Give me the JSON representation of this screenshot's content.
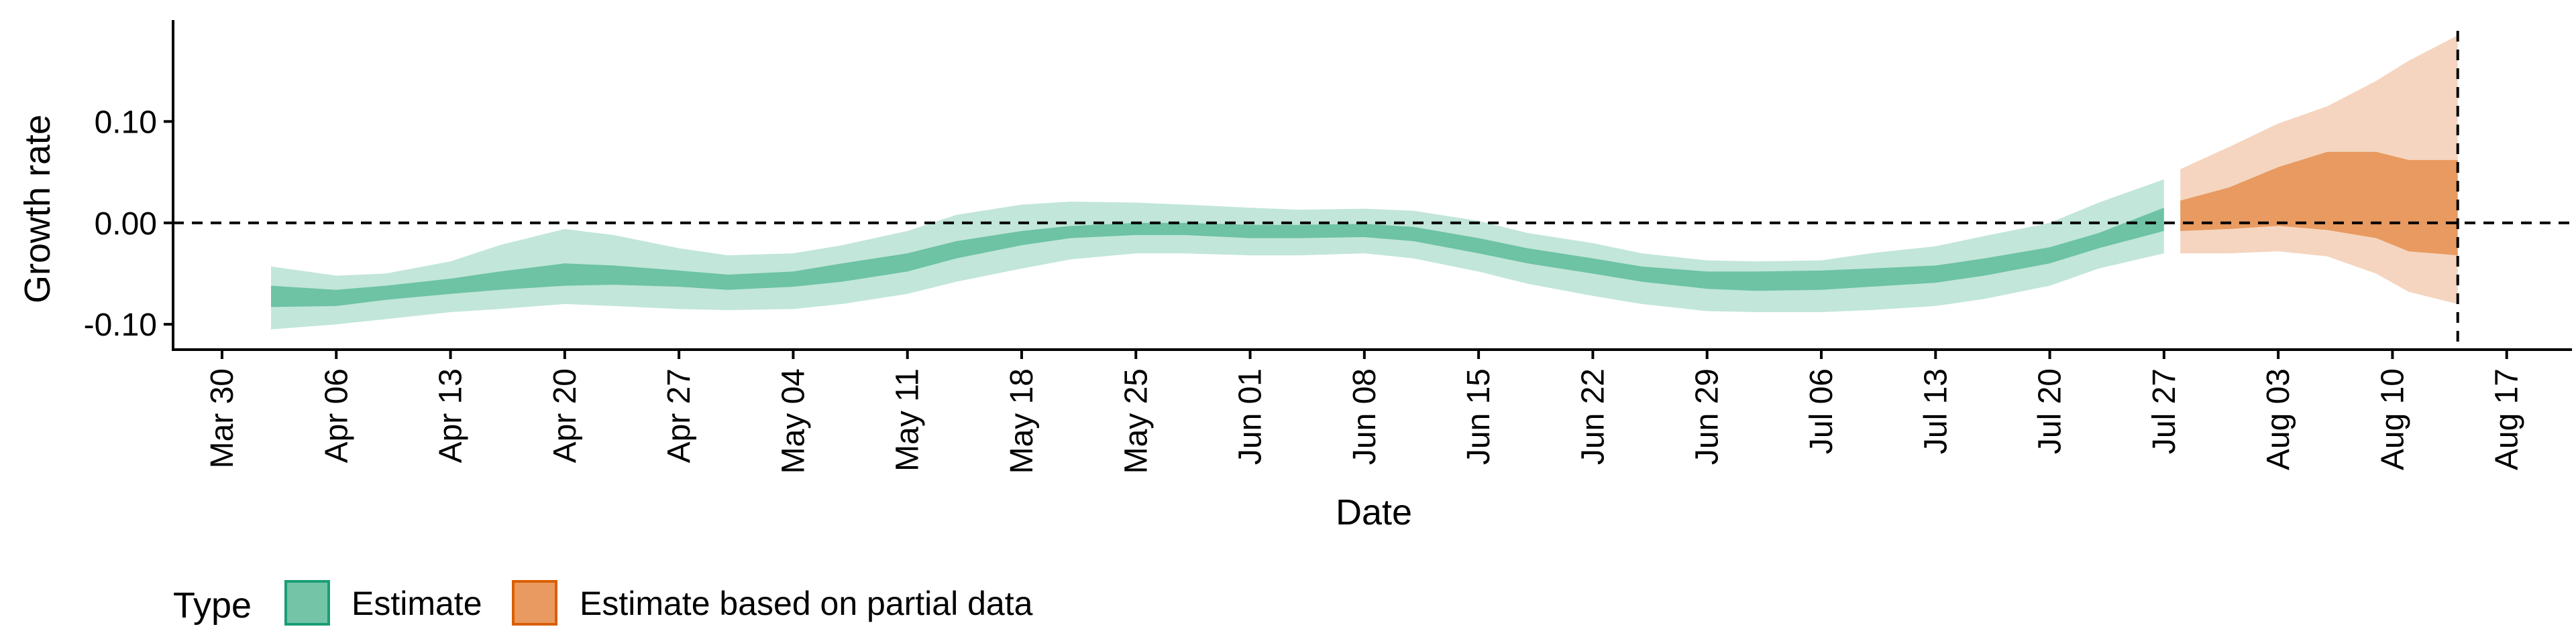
{
  "chart_data": {
    "type": "area",
    "title": "",
    "xlabel": "Date",
    "ylabel": "Growth rate",
    "x_axis": {
      "type": "date",
      "range": [
        "2020-03-27",
        "2020-08-21"
      ],
      "tick_dates": [
        "2020-03-30",
        "2020-04-06",
        "2020-04-13",
        "2020-04-20",
        "2020-04-27",
        "2020-05-04",
        "2020-05-11",
        "2020-05-18",
        "2020-05-25",
        "2020-06-01",
        "2020-06-08",
        "2020-06-15",
        "2020-06-22",
        "2020-06-29",
        "2020-07-06",
        "2020-07-13",
        "2020-07-20",
        "2020-07-27",
        "2020-08-03",
        "2020-08-10",
        "2020-08-17"
      ],
      "tick_labels": [
        "Mar 30",
        "Apr 06",
        "Apr 13",
        "Apr 20",
        "Apr 27",
        "May 04",
        "May 11",
        "May 18",
        "May 25",
        "Jun 01",
        "Jun 08",
        "Jun 15",
        "Jun 22",
        "Jun 29",
        "Jul 06",
        "Jul 13",
        "Jul 20",
        "Jul 27",
        "Aug 03",
        "Aug 10",
        "Aug 17"
      ]
    },
    "y_axis": {
      "range": [
        -0.125,
        0.2
      ],
      "ticks": [
        -0.1,
        0.0,
        0.1
      ],
      "tick_labels": [
        "-0.10",
        "0.00",
        "0.10"
      ]
    },
    "reference_lines": {
      "horizontal_y": 0.0,
      "vertical_date": "2020-08-14"
    },
    "grid": false,
    "legend": {
      "title": "Type",
      "position": "bottom-left",
      "entries": [
        {
          "label": "Estimate",
          "fill": "#74c4a8",
          "border": "#1b9e77"
        },
        {
          "label": "Estimate based on partial data",
          "fill": "#e89a60",
          "border": "#d95f02"
        }
      ]
    },
    "colors": {
      "estimate_inner": "#6dc3a4",
      "estimate_outer": "#c2e6da",
      "partial_inner": "#e89a60",
      "partial_outer": "#f5d5bf"
    },
    "series": [
      {
        "name": "Estimate",
        "points": [
          {
            "date": "2020-04-02",
            "lo90": -0.105,
            "lo50": -0.083,
            "hi50": -0.062,
            "hi90": -0.043
          },
          {
            "date": "2020-04-06",
            "lo90": -0.1,
            "lo50": -0.082,
            "hi50": -0.066,
            "hi90": -0.052
          },
          {
            "date": "2020-04-09",
            "lo90": -0.095,
            "lo50": -0.076,
            "hi50": -0.062,
            "hi90": -0.05
          },
          {
            "date": "2020-04-13",
            "lo90": -0.088,
            "lo50": -0.07,
            "hi50": -0.055,
            "hi90": -0.038
          },
          {
            "date": "2020-04-16",
            "lo90": -0.085,
            "lo50": -0.066,
            "hi50": -0.048,
            "hi90": -0.022
          },
          {
            "date": "2020-04-20",
            "lo90": -0.08,
            "lo50": -0.062,
            "hi50": -0.04,
            "hi90": -0.006
          },
          {
            "date": "2020-04-23",
            "lo90": -0.082,
            "lo50": -0.061,
            "hi50": -0.042,
            "hi90": -0.012
          },
          {
            "date": "2020-04-27",
            "lo90": -0.085,
            "lo50": -0.063,
            "hi50": -0.047,
            "hi90": -0.025
          },
          {
            "date": "2020-04-30",
            "lo90": -0.086,
            "lo50": -0.066,
            "hi50": -0.051,
            "hi90": -0.032
          },
          {
            "date": "2020-05-04",
            "lo90": -0.085,
            "lo50": -0.063,
            "hi50": -0.048,
            "hi90": -0.03
          },
          {
            "date": "2020-05-07",
            "lo90": -0.08,
            "lo50": -0.058,
            "hi50": -0.04,
            "hi90": -0.022
          },
          {
            "date": "2020-05-11",
            "lo90": -0.07,
            "lo50": -0.048,
            "hi50": -0.03,
            "hi90": -0.008
          },
          {
            "date": "2020-05-14",
            "lo90": -0.058,
            "lo50": -0.035,
            "hi50": -0.018,
            "hi90": 0.008
          },
          {
            "date": "2020-05-18",
            "lo90": -0.045,
            "lo50": -0.022,
            "hi50": -0.008,
            "hi90": 0.018
          },
          {
            "date": "2020-05-21",
            "lo90": -0.036,
            "lo50": -0.015,
            "hi50": -0.003,
            "hi90": 0.021
          },
          {
            "date": "2020-05-25",
            "lo90": -0.03,
            "lo50": -0.012,
            "hi50": 0.0,
            "hi90": 0.02
          },
          {
            "date": "2020-05-28",
            "lo90": -0.03,
            "lo50": -0.012,
            "hi50": 0.0,
            "hi90": 0.018
          },
          {
            "date": "2020-06-01",
            "lo90": -0.032,
            "lo50": -0.015,
            "hi50": -0.002,
            "hi90": 0.015
          },
          {
            "date": "2020-06-04",
            "lo90": -0.032,
            "lo50": -0.015,
            "hi50": -0.002,
            "hi90": 0.013
          },
          {
            "date": "2020-06-08",
            "lo90": -0.03,
            "lo50": -0.014,
            "hi50": -0.001,
            "hi90": 0.014
          },
          {
            "date": "2020-06-11",
            "lo90": -0.035,
            "lo50": -0.018,
            "hi50": -0.004,
            "hi90": 0.012
          },
          {
            "date": "2020-06-15",
            "lo90": -0.048,
            "lo50": -0.03,
            "hi50": -0.015,
            "hi90": 0.002
          },
          {
            "date": "2020-06-18",
            "lo90": -0.06,
            "lo50": -0.04,
            "hi50": -0.025,
            "hi90": -0.01
          },
          {
            "date": "2020-06-22",
            "lo90": -0.072,
            "lo50": -0.05,
            "hi50": -0.035,
            "hi90": -0.02
          },
          {
            "date": "2020-06-25",
            "lo90": -0.08,
            "lo50": -0.058,
            "hi50": -0.043,
            "hi90": -0.03
          },
          {
            "date": "2020-06-29",
            "lo90": -0.087,
            "lo50": -0.065,
            "hi50": -0.048,
            "hi90": -0.037
          },
          {
            "date": "2020-07-02",
            "lo90": -0.088,
            "lo50": -0.067,
            "hi50": -0.048,
            "hi90": -0.038
          },
          {
            "date": "2020-07-06",
            "lo90": -0.088,
            "lo50": -0.066,
            "hi50": -0.047,
            "hi90": -0.037
          },
          {
            "date": "2020-07-09",
            "lo90": -0.086,
            "lo50": -0.063,
            "hi50": -0.045,
            "hi90": -0.03
          },
          {
            "date": "2020-07-13",
            "lo90": -0.082,
            "lo50": -0.059,
            "hi50": -0.042,
            "hi90": -0.023
          },
          {
            "date": "2020-07-16",
            "lo90": -0.075,
            "lo50": -0.052,
            "hi50": -0.035,
            "hi90": -0.013
          },
          {
            "date": "2020-07-20",
            "lo90": -0.062,
            "lo50": -0.04,
            "hi50": -0.024,
            "hi90": 0.0
          },
          {
            "date": "2020-07-23",
            "lo90": -0.045,
            "lo50": -0.025,
            "hi50": -0.01,
            "hi90": 0.02
          },
          {
            "date": "2020-07-27",
            "lo90": -0.03,
            "lo50": -0.008,
            "hi50": 0.015,
            "hi90": 0.043
          }
        ]
      },
      {
        "name": "Estimate based on partial data",
        "points": [
          {
            "date": "2020-07-28",
            "lo90": -0.03,
            "lo50": -0.008,
            "hi50": 0.022,
            "hi90": 0.053
          },
          {
            "date": "2020-07-31",
            "lo90": -0.03,
            "lo50": -0.006,
            "hi50": 0.035,
            "hi90": 0.075
          },
          {
            "date": "2020-08-03",
            "lo90": -0.028,
            "lo50": -0.003,
            "hi50": 0.055,
            "hi90": 0.098
          },
          {
            "date": "2020-08-06",
            "lo90": -0.033,
            "lo50": -0.007,
            "hi50": 0.07,
            "hi90": 0.115
          },
          {
            "date": "2020-08-09",
            "lo90": -0.05,
            "lo50": -0.015,
            "hi50": 0.07,
            "hi90": 0.14
          },
          {
            "date": "2020-08-11",
            "lo90": -0.068,
            "lo50": -0.028,
            "hi50": 0.062,
            "hi90": 0.16
          },
          {
            "date": "2020-08-14",
            "lo90": -0.08,
            "lo50": -0.032,
            "hi50": 0.062,
            "hi90": 0.185
          }
        ]
      }
    ]
  }
}
